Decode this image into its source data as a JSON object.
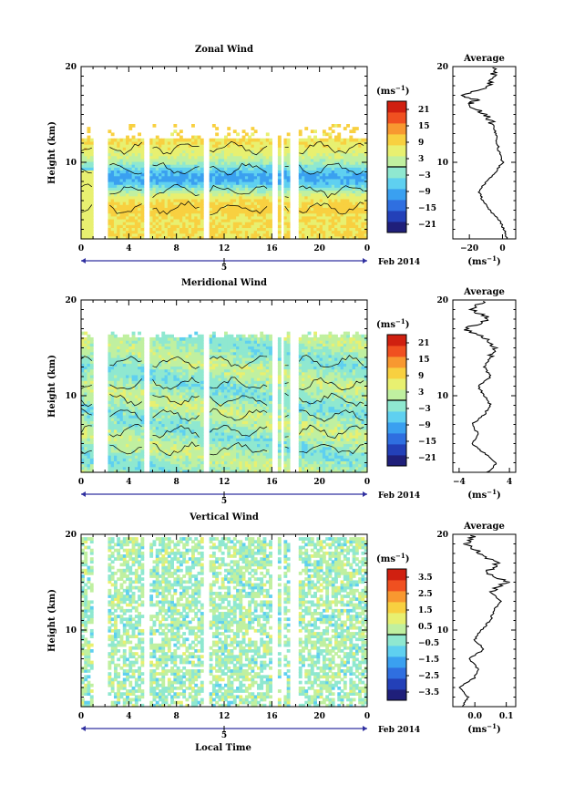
{
  "figure": {
    "x_axis_label": "Local Time",
    "date_label": "Feb 2014",
    "day_label": "5",
    "unit_label_main": "(ms",
    "unit_label_exp": "−1",
    "unit_label_close": ")"
  },
  "colors": {
    "scale": [
      "#1f1f7a",
      "#2340b8",
      "#2f6fe0",
      "#3aa0f0",
      "#5fd0f0",
      "#8fe8d0",
      "#c0f0a0",
      "#e8f070",
      "#f8d040",
      "#f89830",
      "#f05020",
      "#d02010"
    ],
    "background": "#ffffff"
  },
  "chart_data": [
    {
      "type": "heatmap",
      "title": "Zonal Wind",
      "ylabel": "Height (km)",
      "x_ticks": [
        "0",
        "4",
        "8",
        "12",
        "16",
        "20",
        "0"
      ],
      "x_tick_values": [
        0,
        4,
        8,
        12,
        16,
        20,
        24
      ],
      "y_ticks": [
        "10",
        "20"
      ],
      "y_tick_values": [
        10,
        20
      ],
      "xlim": [
        0,
        24
      ],
      "ylim": [
        2,
        20
      ],
      "colorbar_ticks": [
        "21",
        "15",
        "9",
        "3",
        "−3",
        "−9",
        "−15",
        "−21"
      ],
      "colorbar_range": [
        -24,
        24
      ],
      "data_gaps_hours": [
        [
          1.0,
          2.2
        ],
        [
          5.2,
          5.8
        ],
        [
          10.2,
          10.7
        ],
        [
          15.9,
          16.4
        ],
        [
          16.7,
          17.0
        ],
        [
          17.5,
          18.2
        ]
      ],
      "average_profile": {
        "title": "Average",
        "xlabel_main": "(ms",
        "xlabel_exp": "−1",
        "xlabel_close": ")",
        "x_ticks": [
          "−20",
          "0"
        ],
        "x_tick_values": [
          -20,
          0
        ],
        "xlim": [
          -30,
          8
        ],
        "y_ticks": [
          "10",
          "20"
        ],
        "height_km": [
          2,
          3,
          4,
          5,
          6,
          7,
          8,
          9,
          10,
          11,
          12,
          13,
          14,
          15,
          16,
          16.5,
          17,
          18,
          19,
          20
        ],
        "value": [
          3,
          1,
          -2,
          -8,
          -12,
          -14,
          -10,
          -4,
          0,
          -2,
          -3,
          -4,
          -6,
          -10,
          -20,
          -16,
          -24,
          -8,
          -6,
          -4
        ]
      }
    },
    {
      "type": "heatmap",
      "title": "Meridional Wind",
      "ylabel": "Height (km)",
      "x_ticks": [
        "0",
        "4",
        "8",
        "12",
        "16",
        "20",
        "0"
      ],
      "x_tick_values": [
        0,
        4,
        8,
        12,
        16,
        20,
        24
      ],
      "y_ticks": [
        "10",
        "20"
      ],
      "y_tick_values": [
        10,
        20
      ],
      "xlim": [
        0,
        24
      ],
      "ylim": [
        2,
        20
      ],
      "colorbar_ticks": [
        "21",
        "15",
        "9",
        "3",
        "−3",
        "−9",
        "−15",
        "−21"
      ],
      "colorbar_range": [
        -24,
        24
      ],
      "data_gaps_hours": [
        [
          1.0,
          2.2
        ],
        [
          5.2,
          5.8
        ],
        [
          10.2,
          10.7
        ],
        [
          15.9,
          16.4
        ],
        [
          16.7,
          17.0
        ],
        [
          17.5,
          18.2
        ]
      ],
      "average_profile": {
        "title": "Average",
        "xlabel_main": "(ms",
        "xlabel_exp": "−1",
        "xlabel_close": ")",
        "x_ticks": [
          "−4",
          "4"
        ],
        "x_tick_values": [
          -4,
          4
        ],
        "xlim": [
          -5,
          5
        ],
        "y_ticks": [
          "10",
          "20"
        ],
        "height_km": [
          2,
          3,
          4,
          5,
          6,
          7,
          8,
          9,
          10,
          11,
          12,
          13,
          14,
          15,
          16,
          17,
          18,
          19,
          20
        ],
        "value": [
          0.5,
          2,
          0,
          -2,
          -1,
          -2,
          0,
          1,
          0,
          -1,
          1,
          0,
          1,
          2,
          0,
          -3,
          1,
          -2,
          0
        ]
      }
    },
    {
      "type": "heatmap",
      "title": "Vertical Wind",
      "ylabel": "Height (km)",
      "x_ticks": [
        "0",
        "4",
        "8",
        "12",
        "16",
        "20",
        "0"
      ],
      "x_tick_values": [
        0,
        4,
        8,
        12,
        16,
        20,
        24
      ],
      "y_ticks": [
        "10",
        "20"
      ],
      "y_tick_values": [
        10,
        20
      ],
      "xlim": [
        0,
        24
      ],
      "ylim": [
        2,
        20
      ],
      "colorbar_ticks": [
        "3.5",
        "2.5",
        "1.5",
        "0.5",
        "−0.5",
        "−1.5",
        "−2.5",
        "−3.5"
      ],
      "colorbar_range": [
        -4,
        4
      ],
      "data_gaps_hours": [
        [
          1.0,
          2.2
        ],
        [
          5.2,
          5.8
        ],
        [
          10.2,
          10.7
        ],
        [
          15.9,
          16.4
        ],
        [
          16.7,
          17.0
        ],
        [
          17.5,
          18.2
        ]
      ],
      "average_profile": {
        "title": "Average",
        "xlabel_main": "(ms",
        "xlabel_exp": "−1",
        "xlabel_close": ")",
        "x_ticks": [
          "0.0",
          "0.1"
        ],
        "x_tick_values": [
          0.0,
          0.1
        ],
        "xlim": [
          -0.07,
          0.13
        ],
        "y_ticks": [
          "10",
          "20"
        ],
        "height_km": [
          2,
          3,
          4,
          5,
          6,
          7,
          8,
          9,
          10,
          11,
          12,
          13,
          14,
          15,
          16,
          17,
          18,
          19,
          20
        ],
        "value": [
          -0.04,
          -0.02,
          -0.05,
          0.0,
          0.01,
          -0.02,
          0.03,
          0.0,
          0.02,
          0.05,
          0.06,
          0.08,
          0.05,
          0.1,
          0.04,
          0.07,
          0.02,
          -0.03,
          0.0
        ]
      }
    }
  ]
}
